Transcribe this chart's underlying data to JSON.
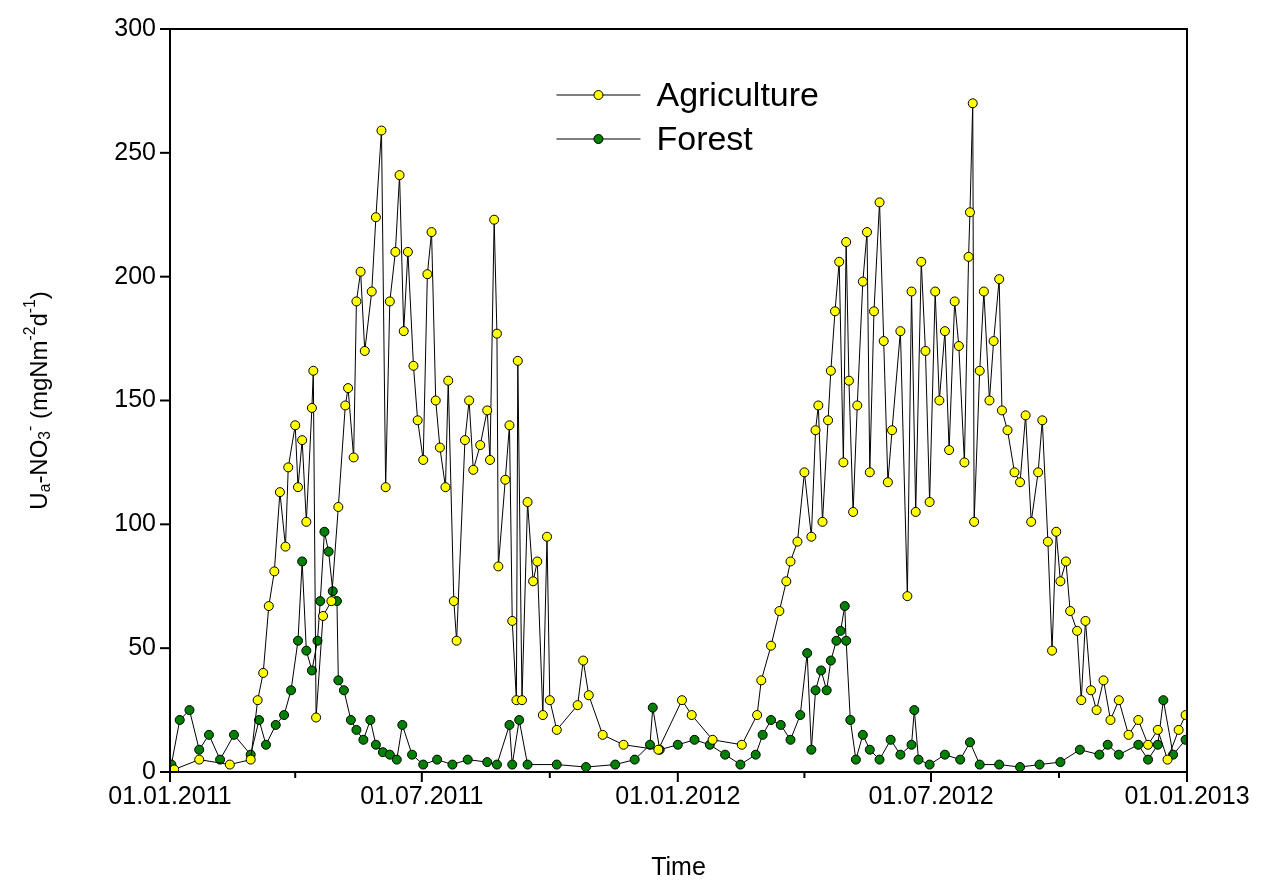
{
  "chart_data": {
    "type": "line",
    "xlabel": "Time",
    "ylabel": "U$_{a}$-NO$_{3}$$^{-}$ (mgNm$^{-2}$d$^{-1}$)",
    "xlim": [
      "2011-01-01",
      "2013-01-01"
    ],
    "xticks": [
      {
        "value": "2011-01-01",
        "label": "01.01.2011"
      },
      {
        "value": "2011-04-01",
        "label": null
      },
      {
        "value": "2011-07-01",
        "label": "01.07.2011"
      },
      {
        "value": "2011-10-01",
        "label": null
      },
      {
        "value": "2012-01-01",
        "label": "01.01.2012"
      },
      {
        "value": "2012-04-01",
        "label": null
      },
      {
        "value": "2012-07-01",
        "label": "01.07.2012"
      },
      {
        "value": "2012-10-01",
        "label": null
      },
      {
        "value": "2013-01-01",
        "label": "01.01.2013"
      }
    ],
    "ylim": [
      0,
      300
    ],
    "yticks": [
      0,
      50,
      100,
      150,
      200,
      250,
      300
    ],
    "grid": false,
    "legend": "top",
    "marker": "circle",
    "line_style": "solid",
    "series": [
      {
        "name": "Agriculture",
        "color": "#ffff00",
        "x": [
          "2011-01-04",
          "2011-01-22",
          "2011-02-13",
          "2011-02-28",
          "2011-03-05",
          "2011-03-09",
          "2011-03-13",
          "2011-03-17",
          "2011-03-21",
          "2011-03-25",
          "2011-03-27",
          "2011-04-01",
          "2011-04-03",
          "2011-04-06",
          "2011-04-09",
          "2011-04-13",
          "2011-04-14",
          "2011-04-16",
          "2011-04-21",
          "2011-04-27",
          "2011-05-02",
          "2011-05-07",
          "2011-05-09",
          "2011-05-13",
          "2011-05-15",
          "2011-05-18",
          "2011-05-21",
          "2011-05-26",
          "2011-05-29",
          "2011-06-02",
          "2011-06-05",
          "2011-06-08",
          "2011-06-12",
          "2011-06-15",
          "2011-06-18",
          "2011-06-21",
          "2011-06-25",
          "2011-06-28",
          "2011-07-02",
          "2011-07-05",
          "2011-07-08",
          "2011-07-11",
          "2011-07-14",
          "2011-07-18",
          "2011-07-20",
          "2011-07-24",
          "2011-07-26",
          "2011-08-01",
          "2011-08-04",
          "2011-08-07",
          "2011-08-12",
          "2011-08-17",
          "2011-08-19",
          "2011-08-22",
          "2011-08-24",
          "2011-08-25",
          "2011-08-30",
          "2011-09-02",
          "2011-09-04",
          "2011-09-07",
          "2011-09-08",
          "2011-09-11",
          "2011-09-15",
          "2011-09-19",
          "2011-09-22",
          "2011-09-26",
          "2011-09-29",
          "2011-10-01",
          "2011-10-06",
          "2011-10-21",
          "2011-10-25",
          "2011-10-29",
          "2011-11-08",
          "2011-11-23",
          "2011-12-18",
          "2012-01-04",
          "2012-01-11",
          "2012-01-26",
          "2012-02-16",
          "2012-02-27",
          "2012-03-01",
          "2012-03-08",
          "2012-03-14",
          "2012-03-19",
          "2012-03-22",
          "2012-03-27",
          "2012-04-01",
          "2012-04-06",
          "2012-04-09",
          "2012-04-11",
          "2012-04-14",
          "2012-04-18",
          "2012-04-20",
          "2012-04-23",
          "2012-04-26",
          "2012-04-29",
          "2012-05-01",
          "2012-05-03",
          "2012-05-06",
          "2012-05-09",
          "2012-05-13",
          "2012-05-16",
          "2012-05-18",
          "2012-05-21",
          "2012-05-25",
          "2012-05-28",
          "2012-05-31",
          "2012-06-03",
          "2012-06-09",
          "2012-06-14",
          "2012-06-17",
          "2012-06-20",
          "2012-06-24",
          "2012-06-27",
          "2012-06-30",
          "2012-07-04",
          "2012-07-07",
          "2012-07-11",
          "2012-07-14",
          "2012-07-18",
          "2012-07-21",
          "2012-07-25",
          "2012-07-28",
          "2012-07-29",
          "2012-07-31",
          "2012-08-01",
          "2012-08-05",
          "2012-08-08",
          "2012-08-12",
          "2012-08-15",
          "2012-08-19",
          "2012-08-21",
          "2012-08-25",
          "2012-08-30",
          "2012-09-03",
          "2012-09-07",
          "2012-09-11",
          "2012-09-16",
          "2012-09-19",
          "2012-09-23",
          "2012-09-26",
          "2012-09-29",
          "2012-10-02",
          "2012-10-06",
          "2012-10-09",
          "2012-10-14",
          "2012-10-17",
          "2012-10-20",
          "2012-10-24",
          "2012-10-28",
          "2012-11-02",
          "2012-11-07",
          "2012-11-13",
          "2012-11-20",
          "2012-11-27",
          "2012-12-04",
          "2012-12-11",
          "2012-12-18",
          "2012-12-26",
          "2012-12-31"
        ],
        "values": [
          1,
          5,
          3,
          5,
          29,
          40,
          67,
          81,
          113,
          91,
          123,
          140,
          115,
          134,
          101,
          147,
          162,
          22,
          63,
          69,
          107,
          148,
          155,
          127,
          190,
          202,
          170,
          194,
          224,
          259,
          115,
          190,
          210,
          241,
          178,
          210,
          164,
          142,
          126,
          201,
          218,
          150,
          131,
          115,
          158,
          69,
          53,
          134,
          150,
          122,
          132,
          146,
          126,
          223,
          177,
          83,
          118,
          140,
          61,
          29,
          166,
          29,
          109,
          77,
          85,
          23,
          95,
          29,
          17,
          27,
          45,
          31,
          15,
          11,
          9,
          29,
          23,
          13,
          11,
          23,
          37,
          51,
          65,
          77,
          85,
          93,
          121,
          95,
          138,
          148,
          101,
          142,
          162,
          186,
          206,
          125,
          214,
          158,
          105,
          148,
          198,
          218,
          121,
          186,
          230,
          174,
          117,
          138,
          178,
          71,
          194,
          105,
          206,
          170,
          109,
          194,
          150,
          178,
          130,
          190,
          172,
          125,
          208,
          226,
          270,
          101,
          162,
          194,
          150,
          174,
          199,
          146,
          138,
          121,
          117,
          144,
          101,
          121,
          142,
          93,
          49,
          97,
          77,
          85,
          65,
          57,
          29,
          61,
          33,
          25,
          37,
          21,
          29,
          15,
          21,
          11,
          17,
          5,
          17,
          23
        ]
      },
      {
        "name": "Forest",
        "color": "#008000",
        "x": [
          "2011-01-02",
          "2011-01-08",
          "2011-01-15",
          "2011-01-22",
          "2011-01-29",
          "2011-02-06",
          "2011-02-16",
          "2011-02-28",
          "2011-03-06",
          "2011-03-11",
          "2011-03-18",
          "2011-03-24",
          "2011-03-29",
          "2011-04-03",
          "2011-04-06",
          "2011-04-09",
          "2011-04-13",
          "2011-04-17",
          "2011-04-19",
          "2011-04-22",
          "2011-04-25",
          "2011-04-28",
          "2011-05-01",
          "2011-05-02",
          "2011-05-06",
          "2011-05-11",
          "2011-05-15",
          "2011-05-20",
          "2011-05-25",
          "2011-05-29",
          "2011-06-03",
          "2011-06-08",
          "2011-06-13",
          "2011-06-17",
          "2011-06-24",
          "2011-07-02",
          "2011-07-12",
          "2011-07-23",
          "2011-08-03",
          "2011-08-17",
          "2011-08-24",
          "2011-09-02",
          "2011-09-04",
          "2011-09-09",
          "2011-09-15",
          "2011-10-06",
          "2011-10-27",
          "2011-11-17",
          "2011-12-01",
          "2011-12-12",
          "2011-12-14",
          "2011-12-19",
          "2012-01-01",
          "2012-01-13",
          "2012-01-24",
          "2012-02-04",
          "2012-02-15",
          "2012-02-26",
          "2012-03-02",
          "2012-03-08",
          "2012-03-15",
          "2012-03-22",
          "2012-03-29",
          "2012-04-03",
          "2012-04-06",
          "2012-04-09",
          "2012-04-13",
          "2012-04-17",
          "2012-04-20",
          "2012-04-24",
          "2012-04-27",
          "2012-04-30",
          "2012-05-01",
          "2012-05-04",
          "2012-05-08",
          "2012-05-13",
          "2012-05-18",
          "2012-05-25",
          "2012-06-02",
          "2012-06-09",
          "2012-06-17",
          "2012-06-19",
          "2012-06-22",
          "2012-06-30",
          "2012-07-11",
          "2012-07-22",
          "2012-07-29",
          "2012-08-05",
          "2012-08-19",
          "2012-09-03",
          "2012-09-17",
          "2012-10-02",
          "2012-10-16",
          "2012-10-30",
          "2012-11-05",
          "2012-11-13",
          "2012-11-27",
          "2012-12-04",
          "2012-12-11",
          "2012-12-15",
          "2012-12-22",
          "2012-12-31"
        ],
        "values": [
          3,
          21,
          25,
          9,
          15,
          5,
          15,
          7,
          21,
          11,
          19,
          23,
          33,
          53,
          85,
          49,
          41,
          53,
          69,
          97,
          89,
          73,
          69,
          37,
          33,
          21,
          17,
          13,
          21,
          11,
          8,
          7,
          5,
          19,
          7,
          3,
          5,
          3,
          5,
          4,
          3,
          19,
          3,
          21,
          3,
          3,
          2,
          3,
          5,
          11,
          26,
          9,
          11,
          13,
          11,
          7,
          3,
          7,
          15,
          21,
          19,
          13,
          23,
          48,
          9,
          33,
          41,
          33,
          45,
          53,
          57,
          67,
          53,
          21,
          5,
          15,
          9,
          5,
          13,
          7,
          11,
          25,
          5,
          3,
          7,
          5,
          12,
          3,
          3,
          2,
          3,
          4,
          9,
          7,
          11,
          7,
          11,
          5,
          11,
          29,
          7,
          13
        ]
      }
    ]
  }
}
